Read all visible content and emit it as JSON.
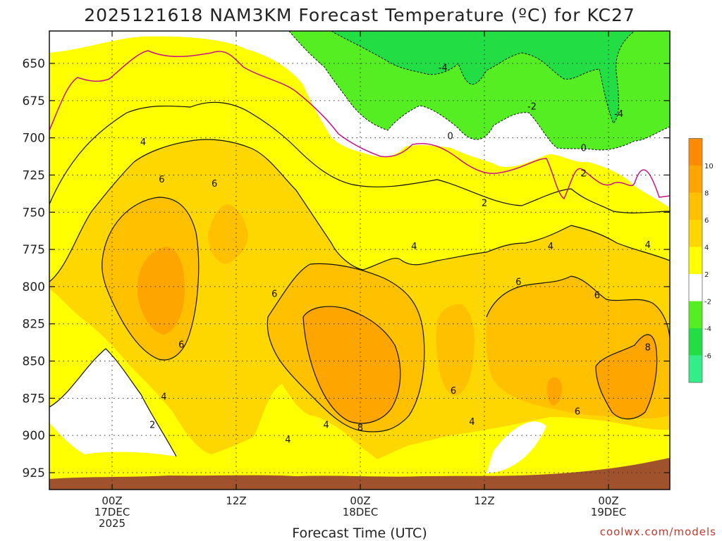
{
  "chart_data": {
    "type": "heatmap",
    "title": "2025121618 NAM3KM Forecast Temperature (ºC) for KC27",
    "xlabel": "Forecast Time (UTC)",
    "ylabel": "",
    "credit": "coolwx.com/models",
    "y_range_hpa": [
      625,
      935
    ],
    "y_ticks": [
      650,
      675,
      700,
      725,
      750,
      775,
      800,
      825,
      850,
      875,
      900,
      925
    ],
    "x_range_hours": [
      0,
      60
    ],
    "x_ticks": [
      {
        "hour": 6,
        "line1": "00Z",
        "line2": "17DEC",
        "line3": "2025"
      },
      {
        "hour": 18,
        "line1": "12Z",
        "line2": "",
        "line3": ""
      },
      {
        "hour": 30,
        "line1": "00Z",
        "line2": "18DEC",
        "line3": ""
      },
      {
        "hour": 42,
        "line1": "12Z",
        "line2": "",
        "line3": ""
      },
      {
        "hour": 54,
        "line1": "00Z",
        "line2": "19DEC",
        "line3": ""
      }
    ],
    "colorbar": {
      "colors": [
        "#33ee88",
        "#22dd44",
        "#55ee22",
        "#ffffff",
        "#ffff00",
        "#ffd700",
        "#ffc000",
        "#ffa500",
        "#ff8c00"
      ],
      "labels": [
        "-6",
        "-4",
        "-2",
        "2",
        "4",
        "6",
        "8",
        "10"
      ]
    },
    "contour_labels": [
      {
        "text": "-4",
        "hour": 38.0,
        "p": 653
      },
      {
        "text": "-2",
        "hour": 46.6,
        "p": 679
      },
      {
        "text": "-4",
        "hour": 55.0,
        "p": 684
      },
      {
        "text": "0",
        "hour": 38.7,
        "p": 699
      },
      {
        "text": "0",
        "hour": 51.6,
        "p": 707
      },
      {
        "text": "2",
        "hour": 51.6,
        "p": 724
      },
      {
        "text": "2",
        "hour": 42.0,
        "p": 744
      },
      {
        "text": "4",
        "hour": 9.0,
        "p": 703
      },
      {
        "text": "6",
        "hour": 10.8,
        "p": 728
      },
      {
        "text": "6",
        "hour": 15.9,
        "p": 731
      },
      {
        "text": "6",
        "hour": 21.7,
        "p": 805
      },
      {
        "text": "6",
        "hour": 12.7,
        "p": 839
      },
      {
        "text": "4",
        "hour": 11.0,
        "p": 874
      },
      {
        "text": "2",
        "hour": 9.9,
        "p": 893
      },
      {
        "text": "4",
        "hour": 35.2,
        "p": 773
      },
      {
        "text": "4",
        "hour": 48.4,
        "p": 773
      },
      {
        "text": "4",
        "hour": 57.8,
        "p": 772
      },
      {
        "text": "6",
        "hour": 45.3,
        "p": 797
      },
      {
        "text": "6",
        "hour": 52.9,
        "p": 806
      },
      {
        "text": "8",
        "hour": 57.8,
        "p": 841
      },
      {
        "text": "6",
        "hour": 39.0,
        "p": 870
      },
      {
        "text": "6",
        "hour": 51.0,
        "p": 884
      },
      {
        "text": "4",
        "hour": 40.8,
        "p": 891
      },
      {
        "text": "4",
        "hour": 26.7,
        "p": 893
      },
      {
        "text": "4",
        "hour": 23.0,
        "p": 903
      },
      {
        "text": "8",
        "hour": 30.0,
        "p": 895
      }
    ],
    "terrain_color": "#a0522d"
  }
}
